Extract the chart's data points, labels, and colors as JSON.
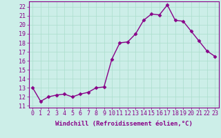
{
  "x": [
    0,
    1,
    2,
    3,
    4,
    5,
    6,
    7,
    8,
    9,
    10,
    11,
    12,
    13,
    14,
    15,
    16,
    17,
    18,
    19,
    20,
    21,
    22,
    23
  ],
  "y": [
    13.0,
    11.5,
    12.0,
    12.2,
    12.3,
    12.0,
    12.3,
    12.5,
    13.0,
    13.1,
    16.2,
    18.0,
    18.1,
    19.0,
    20.5,
    21.2,
    21.1,
    22.2,
    20.5,
    20.4,
    19.3,
    18.2,
    17.1,
    16.5
  ],
  "line_color": "#880088",
  "marker": "D",
  "marker_size": 2.5,
  "bg_color": "#cceee8",
  "grid_color": "#aaddcc",
  "xlabel": "Windchill (Refroidissement éolien,°C)",
  "xlabel_fontsize": 6.5,
  "yticks": [
    11,
    12,
    13,
    14,
    15,
    16,
    17,
    18,
    19,
    20,
    21,
    22
  ],
  "xticks": [
    0,
    1,
    2,
    3,
    4,
    5,
    6,
    7,
    8,
    9,
    10,
    11,
    12,
    13,
    14,
    15,
    16,
    17,
    18,
    19,
    20,
    21,
    22,
    23
  ],
  "ylim": [
    10.8,
    22.6
  ],
  "xlim": [
    -0.5,
    23.5
  ],
  "tick_fontsize": 6,
  "line_width": 1.0,
  "text_color": "#880088"
}
